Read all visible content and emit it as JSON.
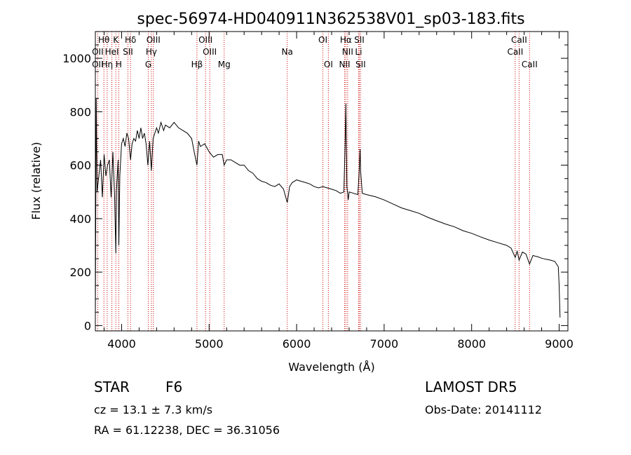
{
  "chart_data": {
    "type": "line",
    "title": "spec-56974-HD040911N362538V01_sp03-183.fits",
    "xlabel": "Wavelength (Å)",
    "ylabel": "Flux (relative)",
    "xlim": [
      3700,
      9100
    ],
    "ylim": [
      -20,
      1100
    ],
    "x_ticks": [
      4000,
      5000,
      6000,
      7000,
      8000,
      9000
    ],
    "y_ticks": [
      0,
      200,
      400,
      600,
      800,
      1000
    ],
    "grid": false,
    "series": [
      {
        "x": [
          3700,
          3710,
          3720,
          3740,
          3760,
          3780,
          3800,
          3820,
          3840,
          3860,
          3880,
          3890,
          3900,
          3920,
          3934,
          3940,
          3960,
          3968,
          3980,
          4000,
          4020,
          4040,
          4060,
          4080,
          4102,
          4120,
          4140,
          4160,
          4180,
          4200,
          4220,
          4240,
          4260,
          4280,
          4300,
          4320,
          4340,
          4360,
          4380,
          4400,
          4420,
          4450,
          4480,
          4500,
          4550,
          4600,
          4650,
          4700,
          4750,
          4800,
          4830,
          4861,
          4880,
          4900,
          4950,
          5000,
          5050,
          5100,
          5150,
          5172,
          5200,
          5250,
          5300,
          5350,
          5400,
          5450,
          5500,
          5550,
          5600,
          5650,
          5700,
          5750,
          5800,
          5850,
          5893,
          5920,
          5950,
          6000,
          6050,
          6100,
          6150,
          6200,
          6250,
          6300,
          6350,
          6400,
          6450,
          6500,
          6540,
          6555,
          6563,
          6575,
          6590,
          6600,
          6650,
          6700,
          6716,
          6725,
          6731,
          6750,
          6800,
          6900,
          7000,
          7100,
          7200,
          7300,
          7400,
          7500,
          7600,
          7700,
          7800,
          7900,
          8000,
          8100,
          8200,
          8300,
          8400,
          8450,
          8498,
          8520,
          8542,
          8580,
          8620,
          8662,
          8700,
          8750,
          8800,
          8850,
          8900,
          8950,
          8990,
          9000,
          9010
        ],
        "values": [
          30,
          850,
          500,
          560,
          620,
          480,
          640,
          560,
          600,
          620,
          480,
          560,
          650,
          480,
          270,
          500,
          620,
          300,
          560,
          680,
          700,
          670,
          720,
          700,
          620,
          680,
          700,
          690,
          730,
          700,
          740,
          700,
          720,
          680,
          600,
          690,
          580,
          700,
          720,
          740,
          720,
          760,
          730,
          750,
          740,
          760,
          740,
          730,
          720,
          700,
          650,
          600,
          690,
          670,
          680,
          650,
          630,
          640,
          640,
          600,
          620,
          620,
          610,
          600,
          600,
          580,
          570,
          550,
          540,
          535,
          525,
          520,
          530,
          510,
          460,
          520,
          535,
          545,
          540,
          535,
          530,
          520,
          515,
          520,
          515,
          510,
          505,
          495,
          500,
          690,
          830,
          520,
          470,
          500,
          495,
          490,
          580,
          660,
          580,
          495,
          490,
          482,
          470,
          455,
          440,
          430,
          420,
          405,
          392,
          380,
          370,
          355,
          345,
          332,
          320,
          310,
          300,
          290,
          255,
          278,
          245,
          275,
          268,
          230,
          262,
          258,
          252,
          248,
          245,
          240,
          220,
          150,
          30
        ]
      }
    ],
    "spectral_lines": [
      {
        "name": "Hθ",
        "wavelength": 3798,
        "row": 0
      },
      {
        "name": "K",
        "wavelength": 3934,
        "row": 0
      },
      {
        "name": "Hδ",
        "wavelength": 4102,
        "row": 0
      },
      {
        "name": "OIII",
        "wavelength": 4363,
        "row": 0
      },
      {
        "name": "OIII",
        "wavelength": 4959,
        "row": 0
      },
      {
        "name": "OI",
        "wavelength": 6300,
        "row": 0
      },
      {
        "name": "Hα",
        "wavelength": 6563,
        "row": 0
      },
      {
        "name": "SII",
        "wavelength": 6716,
        "row": 0
      },
      {
        "name": "CaII",
        "wavelength": 8542,
        "row": 0
      },
      {
        "name": "OII",
        "wavelength": 3727,
        "row": 1
      },
      {
        "name": "HeI",
        "wavelength": 3889,
        "row": 1
      },
      {
        "name": "SII",
        "wavelength": 4072,
        "row": 1
      },
      {
        "name": "Hγ",
        "wavelength": 4340,
        "row": 1
      },
      {
        "name": "OIII",
        "wavelength": 5007,
        "row": 1
      },
      {
        "name": "Na",
        "wavelength": 5893,
        "row": 1
      },
      {
        "name": "NII",
        "wavelength": 6583,
        "row": 1
      },
      {
        "name": "Li",
        "wavelength": 6708,
        "row": 1
      },
      {
        "name": "CaII",
        "wavelength": 8498,
        "row": 1
      },
      {
        "name": "OII",
        "wavelength": 3727,
        "row": 2
      },
      {
        "name": "Hη",
        "wavelength": 3835,
        "row": 2
      },
      {
        "name": "H",
        "wavelength": 3968,
        "row": 2
      },
      {
        "name": "G",
        "wavelength": 4305,
        "row": 2
      },
      {
        "name": "Hβ",
        "wavelength": 4861,
        "row": 2
      },
      {
        "name": "Mg",
        "wavelength": 5172,
        "row": 2
      },
      {
        "name": "OI",
        "wavelength": 6363,
        "row": 2
      },
      {
        "name": "NII",
        "wavelength": 6548,
        "row": 2
      },
      {
        "name": "SII",
        "wavelength": 6731,
        "row": 2
      },
      {
        "name": "CaII",
        "wavelength": 8662,
        "row": 2
      }
    ],
    "line_marker_color": "#cc0000",
    "spectrum_color": "#000000"
  },
  "info": {
    "object_class": "STAR",
    "subclass": "F6",
    "survey": "LAMOST DR5",
    "redshift": "cz = 13.1 ± 7.3 km/s",
    "obs_date": "Obs-Date: 20141112",
    "coords": "RA =  61.12238, DEC =  36.31056"
  }
}
